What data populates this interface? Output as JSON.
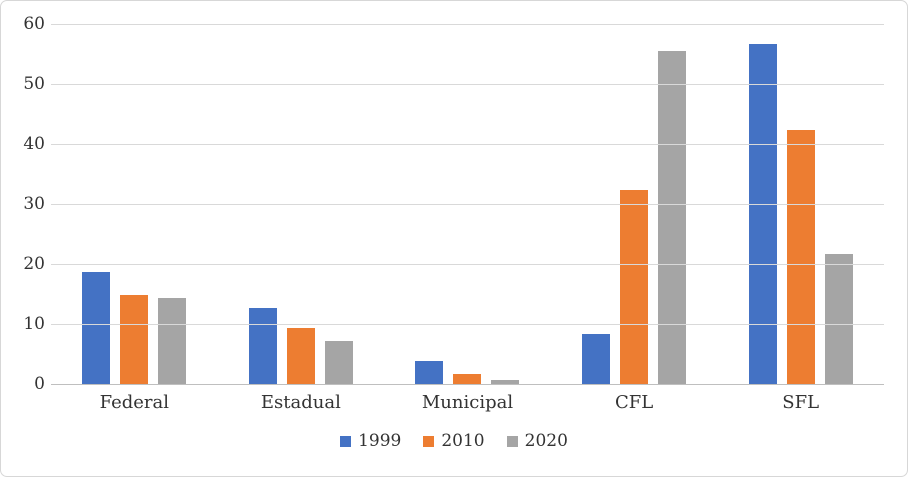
{
  "chart_data": {
    "type": "bar",
    "title": "",
    "xlabel": "",
    "ylabel": "",
    "categories": [
      "Federal",
      "Estadual",
      "Municipal",
      "CFL",
      "SFL"
    ],
    "series": [
      {
        "name": "1999",
        "color": "#4472C4",
        "values": [
          18.7,
          12.7,
          3.9,
          8.4,
          56.6
        ]
      },
      {
        "name": "2010",
        "color": "#ED7D31",
        "values": [
          14.8,
          9.4,
          1.7,
          32.4,
          42.3
        ]
      },
      {
        "name": "2020",
        "color": "#A5A5A5",
        "values": [
          14.4,
          7.1,
          0.6,
          55.5,
          21.7
        ]
      }
    ],
    "ylim": [
      0,
      60
    ],
    "ytick_step": 10,
    "ytick_labels": [
      "0",
      "10",
      "20",
      "30",
      "40",
      "50",
      "60"
    ],
    "grid": true,
    "legend_position": "bottom"
  },
  "colors": {
    "gridline": "#D9D9D9",
    "axis_line": "#BFBFBF",
    "text": "#333333",
    "border": "#D7D7D7",
    "background": "#FFFFFF"
  }
}
